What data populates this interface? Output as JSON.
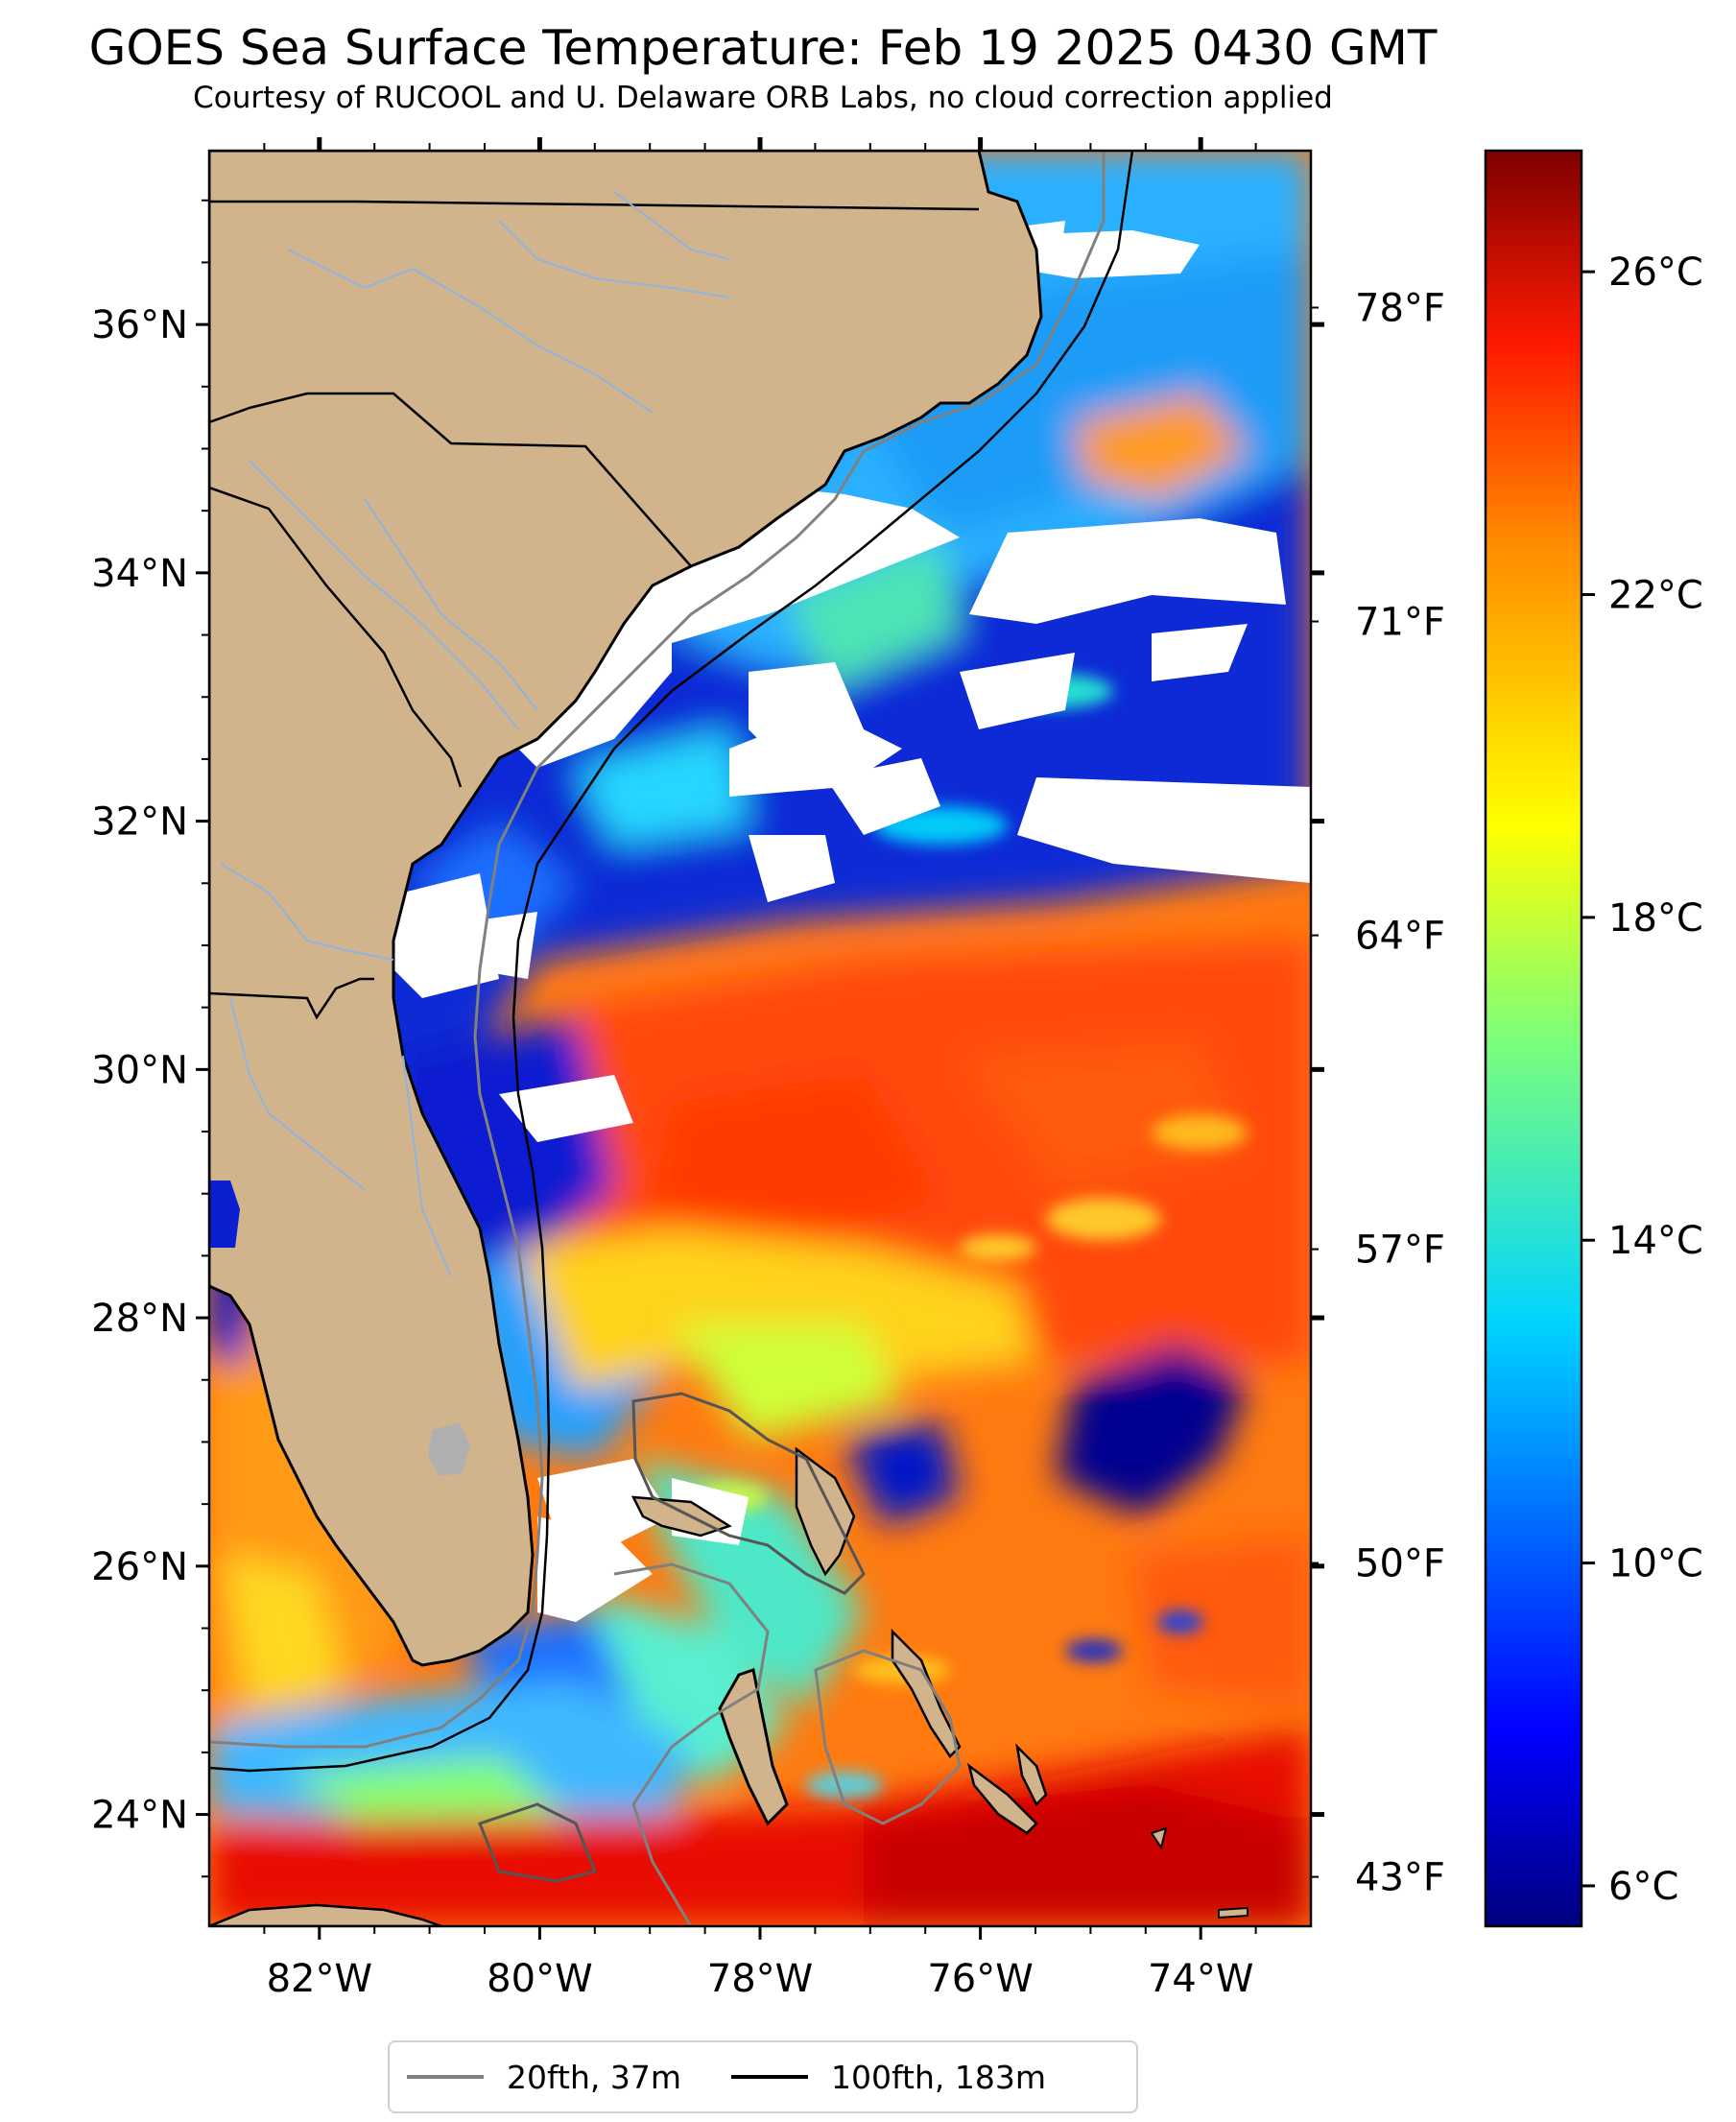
{
  "title": "GOES Sea Surface Temperature: Feb 19 2025 0430 GMT",
  "subtitle": "Courtesy of RUCOOL and U. Delaware ORB Labs, no cloud correction applied",
  "map": {
    "extent": {
      "lon_min": -83,
      "lon_max": -73,
      "lat_min": 23.1,
      "lat_max": 37.4
    },
    "lat_ticks": [
      {
        "value": 36,
        "label": "36°N"
      },
      {
        "value": 34,
        "label": "34°N"
      },
      {
        "value": 32,
        "label": "32°N"
      },
      {
        "value": 30,
        "label": "30°N"
      },
      {
        "value": 28,
        "label": "28°N"
      },
      {
        "value": 26,
        "label": "26°N"
      },
      {
        "value": 24,
        "label": "24°N"
      }
    ],
    "lon_ticks": [
      {
        "value": -82,
        "label": "82°W"
      },
      {
        "value": -80,
        "label": "80°W"
      },
      {
        "value": -78,
        "label": "78°W"
      },
      {
        "value": -76,
        "label": "76°W"
      },
      {
        "value": -74,
        "label": "74°W"
      }
    ],
    "fahrenheit_ticks": [
      {
        "value": 78,
        "label": "78°F"
      },
      {
        "value": 71,
        "label": "71°F"
      },
      {
        "value": 64,
        "label": "64°F"
      },
      {
        "value": 57,
        "label": "57°F"
      },
      {
        "value": 50,
        "label": "50°F"
      },
      {
        "value": 43,
        "label": "43°F"
      }
    ],
    "colors": {
      "land": "#d2b48c",
      "cloud": "#ffffff",
      "coast": "#000000",
      "rivers": "#8fb3e0",
      "lake": "#b0b0b0"
    }
  },
  "colorbar": {
    "range_c": [
      5.5,
      27.5
    ],
    "ticks": [
      {
        "value": 26,
        "label": "26°C"
      },
      {
        "value": 22,
        "label": "22°C"
      },
      {
        "value": 18,
        "label": "18°C"
      },
      {
        "value": 14,
        "label": "14°C"
      },
      {
        "value": 10,
        "label": "10°C"
      },
      {
        "value": 6,
        "label": "6°C"
      }
    ],
    "colormap": "jet"
  },
  "legend": [
    {
      "label": "20fth, 37m",
      "color": "#808080"
    },
    {
      "label": "100fth, 183m",
      "color": "#000000"
    }
  ]
}
